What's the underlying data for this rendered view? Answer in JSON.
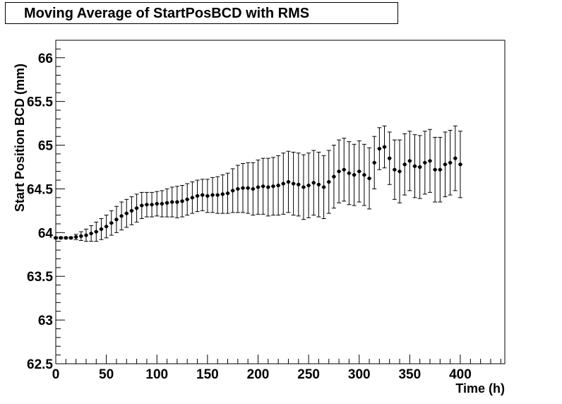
{
  "chart_data": {
    "type": "scatter",
    "title": "Moving Average of StartPosBCD with RMS",
    "xlabel": "Time (h)",
    "ylabel": "Start Position BCD (mm)",
    "xlim": [
      0,
      444
    ],
    "ylim": [
      62.5,
      66.2
    ],
    "x_ticks": [
      0,
      50,
      100,
      150,
      200,
      250,
      300,
      350,
      400
    ],
    "x_tick_labels": [
      "0",
      "50",
      "100",
      "150",
      "200",
      "250",
      "300",
      "350",
      "400"
    ],
    "y_ticks": [
      62.5,
      63,
      63.5,
      64,
      64.5,
      65,
      65.5,
      66
    ],
    "y_tick_labels": [
      "62.5",
      "63",
      "63.5",
      "64",
      "64.5",
      "65",
      "65.5",
      "66"
    ],
    "grid": false,
    "legend": "none",
    "marker_color": "#000000",
    "series": [
      {
        "points": [
          {
            "x": 0,
            "y": 63.94,
            "err": 0.01
          },
          {
            "x": 5,
            "y": 63.94,
            "err": 0.01
          },
          {
            "x": 10,
            "y": 63.94,
            "err": 0.01
          },
          {
            "x": 15,
            "y": 63.94,
            "err": 0.01
          },
          {
            "x": 20,
            "y": 63.95,
            "err": 0.03
          },
          {
            "x": 25,
            "y": 63.96,
            "err": 0.05
          },
          {
            "x": 30,
            "y": 63.97,
            "err": 0.07
          },
          {
            "x": 35,
            "y": 63.99,
            "err": 0.09
          },
          {
            "x": 40,
            "y": 64.01,
            "err": 0.11
          },
          {
            "x": 45,
            "y": 64.04,
            "err": 0.12
          },
          {
            "x": 50,
            "y": 64.07,
            "err": 0.13
          },
          {
            "x": 55,
            "y": 64.11,
            "err": 0.14
          },
          {
            "x": 60,
            "y": 64.15,
            "err": 0.15
          },
          {
            "x": 65,
            "y": 64.19,
            "err": 0.16
          },
          {
            "x": 70,
            "y": 64.22,
            "err": 0.16
          },
          {
            "x": 75,
            "y": 64.25,
            "err": 0.16
          },
          {
            "x": 80,
            "y": 64.28,
            "err": 0.16
          },
          {
            "x": 85,
            "y": 64.31,
            "err": 0.15
          },
          {
            "x": 90,
            "y": 64.32,
            "err": 0.14
          },
          {
            "x": 95,
            "y": 64.32,
            "err": 0.14
          },
          {
            "x": 100,
            "y": 64.33,
            "err": 0.14
          },
          {
            "x": 105,
            "y": 64.33,
            "err": 0.15
          },
          {
            "x": 110,
            "y": 64.34,
            "err": 0.16
          },
          {
            "x": 115,
            "y": 64.35,
            "err": 0.17
          },
          {
            "x": 120,
            "y": 64.35,
            "err": 0.18
          },
          {
            "x": 125,
            "y": 64.36,
            "err": 0.18
          },
          {
            "x": 130,
            "y": 64.38,
            "err": 0.18
          },
          {
            "x": 135,
            "y": 64.4,
            "err": 0.18
          },
          {
            "x": 140,
            "y": 64.42,
            "err": 0.18
          },
          {
            "x": 145,
            "y": 64.43,
            "err": 0.18
          },
          {
            "x": 150,
            "y": 64.42,
            "err": 0.19
          },
          {
            "x": 155,
            "y": 64.43,
            "err": 0.2
          },
          {
            "x": 160,
            "y": 64.43,
            "err": 0.21
          },
          {
            "x": 165,
            "y": 64.44,
            "err": 0.22
          },
          {
            "x": 170,
            "y": 64.45,
            "err": 0.23
          },
          {
            "x": 175,
            "y": 64.48,
            "err": 0.25
          },
          {
            "x": 180,
            "y": 64.5,
            "err": 0.27
          },
          {
            "x": 185,
            "y": 64.51,
            "err": 0.28
          },
          {
            "x": 190,
            "y": 64.51,
            "err": 0.29
          },
          {
            "x": 195,
            "y": 64.5,
            "err": 0.3
          },
          {
            "x": 200,
            "y": 64.52,
            "err": 0.31
          },
          {
            "x": 205,
            "y": 64.53,
            "err": 0.32
          },
          {
            "x": 210,
            "y": 64.52,
            "err": 0.33
          },
          {
            "x": 215,
            "y": 64.53,
            "err": 0.33
          },
          {
            "x": 220,
            "y": 64.54,
            "err": 0.34
          },
          {
            "x": 225,
            "y": 64.56,
            "err": 0.35
          },
          {
            "x": 230,
            "y": 64.58,
            "err": 0.35
          },
          {
            "x": 235,
            "y": 64.56,
            "err": 0.36
          },
          {
            "x": 240,
            "y": 64.55,
            "err": 0.36
          },
          {
            "x": 245,
            "y": 64.52,
            "err": 0.37
          },
          {
            "x": 250,
            "y": 64.54,
            "err": 0.37
          },
          {
            "x": 255,
            "y": 64.57,
            "err": 0.37
          },
          {
            "x": 260,
            "y": 64.55,
            "err": 0.37
          },
          {
            "x": 265,
            "y": 64.52,
            "err": 0.36
          },
          {
            "x": 270,
            "y": 64.58,
            "err": 0.36
          },
          {
            "x": 275,
            "y": 64.64,
            "err": 0.36
          },
          {
            "x": 280,
            "y": 64.7,
            "err": 0.36
          },
          {
            "x": 285,
            "y": 64.72,
            "err": 0.36
          },
          {
            "x": 290,
            "y": 64.68,
            "err": 0.36
          },
          {
            "x": 295,
            "y": 64.66,
            "err": 0.35
          },
          {
            "x": 300,
            "y": 64.7,
            "err": 0.35
          },
          {
            "x": 305,
            "y": 64.66,
            "err": 0.35
          },
          {
            "x": 310,
            "y": 64.62,
            "err": 0.35
          },
          {
            "x": 315,
            "y": 64.8,
            "err": 0.3
          },
          {
            "x": 320,
            "y": 64.96,
            "err": 0.24
          },
          {
            "x": 325,
            "y": 64.98,
            "err": 0.24
          },
          {
            "x": 330,
            "y": 64.85,
            "err": 0.3
          },
          {
            "x": 335,
            "y": 64.72,
            "err": 0.34
          },
          {
            "x": 340,
            "y": 64.7,
            "err": 0.36
          },
          {
            "x": 345,
            "y": 64.78,
            "err": 0.35
          },
          {
            "x": 350,
            "y": 64.82,
            "err": 0.34
          },
          {
            "x": 355,
            "y": 64.76,
            "err": 0.36
          },
          {
            "x": 360,
            "y": 64.75,
            "err": 0.36
          },
          {
            "x": 365,
            "y": 64.8,
            "err": 0.36
          },
          {
            "x": 370,
            "y": 64.82,
            "err": 0.36
          },
          {
            "x": 375,
            "y": 64.72,
            "err": 0.37
          },
          {
            "x": 380,
            "y": 64.72,
            "err": 0.37
          },
          {
            "x": 385,
            "y": 64.78,
            "err": 0.37
          },
          {
            "x": 390,
            "y": 64.8,
            "err": 0.37
          },
          {
            "x": 395,
            "y": 64.85,
            "err": 0.37
          },
          {
            "x": 400,
            "y": 64.78,
            "err": 0.38
          }
        ]
      }
    ]
  }
}
